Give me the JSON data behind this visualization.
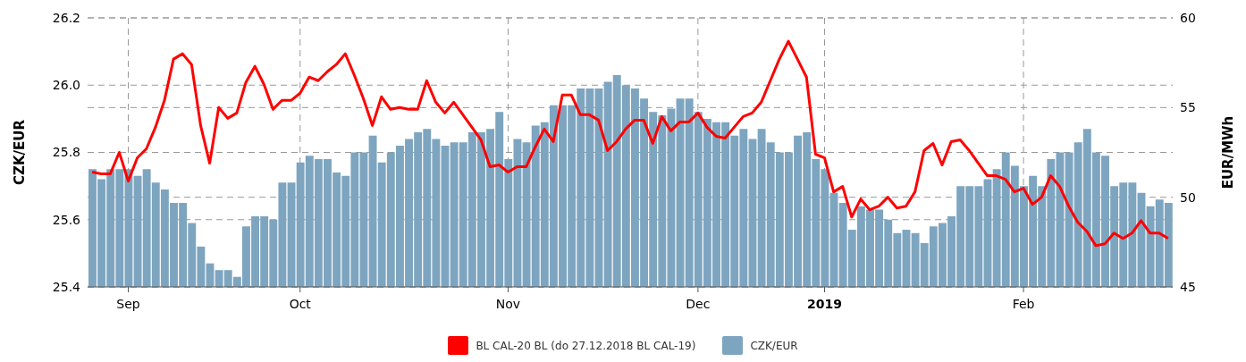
{
  "chart_data": {
    "type": "bar",
    "ylabel": "CZK/EUR",
    "y2label": "EUR/MWh",
    "categories": [
      null,
      null,
      null,
      null,
      "Sep",
      null,
      null,
      null,
      null,
      null,
      null,
      null,
      null,
      null,
      null,
      null,
      null,
      null,
      null,
      null,
      null,
      null,
      null,
      "Oct",
      null,
      null,
      null,
      null,
      null,
      null,
      null,
      null,
      null,
      null,
      null,
      null,
      null,
      null,
      null,
      null,
      null,
      null,
      null,
      null,
      null,
      null,
      "Nov",
      null,
      null,
      null,
      null,
      null,
      null,
      null,
      null,
      null,
      null,
      null,
      null,
      null,
      null,
      null,
      null,
      null,
      null,
      null,
      null,
      "Dec",
      null,
      null,
      null,
      null,
      null,
      null,
      null,
      null,
      null,
      null,
      null,
      null,
      null,
      "2019",
      null,
      null,
      null,
      null,
      null,
      null,
      null,
      null,
      null,
      null,
      null,
      null,
      null,
      null,
      null,
      null,
      null,
      null,
      null,
      null,
      null,
      "Feb",
      null,
      null,
      null,
      null,
      null,
      null,
      null,
      null,
      null,
      null,
      null,
      null,
      null,
      null,
      null,
      null
    ],
    "series": [
      {
        "name": "BL CAL-20 BL (do 27.12.2018 BL CAL-19)",
        "type": "line",
        "axis": "y2",
        "color": "#ff0000",
        "values": [
          51.4,
          51.3,
          51.3,
          52.5,
          50.9,
          52.2,
          52.7,
          53.9,
          55.4,
          57.7,
          58.0,
          57.4,
          54.0,
          51.9,
          55.0,
          54.4,
          54.7,
          56.4,
          57.3,
          56.3,
          54.9,
          55.4,
          55.4,
          55.8,
          56.7,
          56.5,
          57.0,
          57.4,
          58.0,
          56.8,
          55.5,
          54.0,
          55.6,
          54.9,
          55.0,
          54.9,
          54.9,
          56.5,
          55.3,
          54.7,
          55.3,
          54.6,
          53.9,
          53.2,
          51.7,
          51.8,
          51.4,
          51.7,
          51.7,
          52.8,
          53.8,
          53.1,
          55.7,
          55.7,
          54.6,
          54.6,
          54.3,
          52.6,
          53.1,
          53.8,
          54.3,
          54.3,
          53.0,
          54.5,
          53.7,
          54.2,
          54.2,
          54.7,
          53.9,
          53.4,
          53.3,
          53.9,
          54.5,
          54.7,
          55.3,
          56.5,
          57.7,
          58.7,
          57.7,
          56.7,
          52.4,
          52.2,
          50.3,
          50.6,
          48.9,
          49.9,
          49.3,
          49.5,
          50.0,
          49.4,
          49.5,
          50.3,
          52.6,
          53.0,
          51.8,
          53.1,
          53.2,
          52.6,
          51.9,
          51.2,
          51.2,
          51.0,
          50.3,
          50.5,
          49.6,
          50.0,
          51.2,
          50.6,
          49.5,
          48.6,
          48.1,
          47.3,
          47.4,
          48.0,
          47.7,
          48.0,
          48.7,
          48.0,
          48.0,
          47.7
        ]
      },
      {
        "name": "CZK/EUR",
        "color": "#7ea5c0",
        "values": [
          25.75,
          25.72,
          25.75,
          25.75,
          25.75,
          25.73,
          25.75,
          25.71,
          25.69,
          25.65,
          25.65,
          25.59,
          25.52,
          25.47,
          25.45,
          25.45,
          25.43,
          25.58,
          25.61,
          25.61,
          25.6,
          25.71,
          25.71,
          25.77,
          25.79,
          25.78,
          25.78,
          25.74,
          25.73,
          25.8,
          25.8,
          25.85,
          25.77,
          25.8,
          25.82,
          25.84,
          25.86,
          25.87,
          25.84,
          25.82,
          25.83,
          25.83,
          25.86,
          25.86,
          25.87,
          25.92,
          25.78,
          25.84,
          25.83,
          25.88,
          25.89,
          25.94,
          25.94,
          25.94,
          25.99,
          25.99,
          25.99,
          26.01,
          26.03,
          26.0,
          25.99,
          25.96,
          25.92,
          25.91,
          25.93,
          25.96,
          25.96,
          25.92,
          25.9,
          25.89,
          25.89,
          25.85,
          25.87,
          25.84,
          25.87,
          25.83,
          25.8,
          25.8,
          25.85,
          25.86,
          25.78,
          25.75,
          25.68,
          25.65,
          25.57,
          25.64,
          25.63,
          25.63,
          25.6,
          25.56,
          25.57,
          25.56,
          25.53,
          25.58,
          25.59,
          25.61,
          25.7,
          25.7,
          25.7,
          25.72,
          25.75,
          25.8,
          25.76,
          25.7,
          25.73,
          25.7,
          25.78,
          25.8,
          25.8,
          25.83,
          25.87,
          25.8,
          25.79,
          25.7,
          25.71,
          25.71,
          25.68,
          25.64,
          25.66,
          25.65
        ]
      }
    ],
    "ylim": [
      25.4,
      26.2
    ],
    "yticks": [
      25.4,
      25.6,
      25.8,
      {
        "value": 26,
        "label": "26.0"
      },
      26.2
    ],
    "y2lim": [
      45,
      60
    ],
    "y2ticks": [
      45,
      50,
      55,
      60
    ],
    "grid": true,
    "legend": "bottom",
    "marker": "none",
    "line_style": "solid"
  }
}
